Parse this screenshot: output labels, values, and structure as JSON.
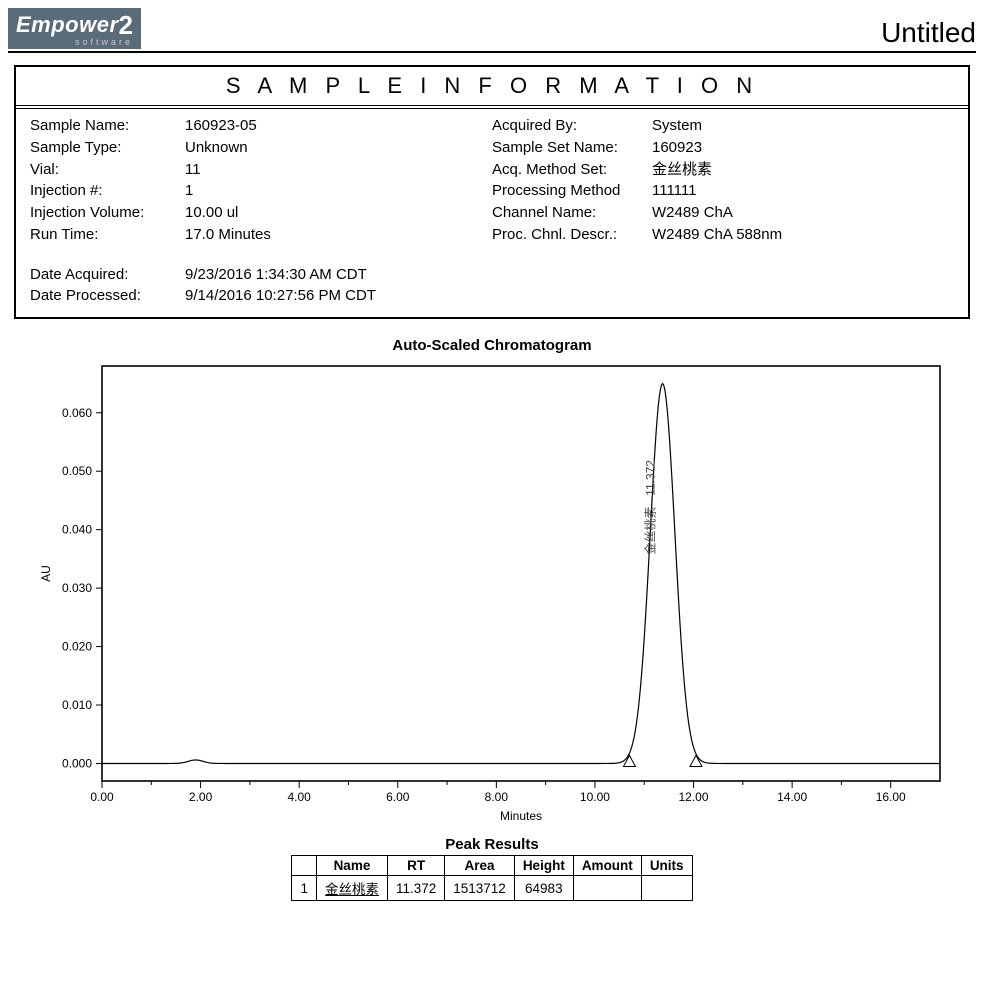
{
  "logo": {
    "brand": "Empower",
    "version": "2",
    "sub": "software"
  },
  "page_title": "Untitled",
  "sample_section_title": "S A M P L E     I N F O R M A T I O N",
  "sample_left": [
    {
      "label": "Sample Name:",
      "value": "160923-05"
    },
    {
      "label": "Sample Type:",
      "value": "Unknown"
    },
    {
      "label": "Vial:",
      "value": "11"
    },
    {
      "label": "Injection #:",
      "value": "1"
    },
    {
      "label": "Injection Volume:",
      "value": "10.00 ul"
    },
    {
      "label": "Run Time:",
      "value": "17.0 Minutes"
    }
  ],
  "sample_left_extra": [
    {
      "label": "Date Acquired:",
      "value": "9/23/2016 1:34:30 AM CDT"
    },
    {
      "label": "Date Processed:",
      "value": "9/14/2016 10:27:56 PM CDT"
    }
  ],
  "sample_right": [
    {
      "label": "Acquired By:",
      "value": "System"
    },
    {
      "label": "Sample Set Name:",
      "value": "160923"
    },
    {
      "label": "Acq. Method Set:",
      "value": "金丝桃素"
    },
    {
      "label": "Processing Method",
      "value": "111111"
    },
    {
      "label": "Channel Name:",
      "value": "W2489 ChA"
    },
    {
      "label": "Proc. Chnl. Descr.:",
      "value": "W2489 ChA 588nm"
    }
  ],
  "chart": {
    "title": "Auto-Scaled Chromatogram",
    "type": "line",
    "xlabel": "Minutes",
    "ylabel": "AU",
    "xlim": [
      0,
      17
    ],
    "ylim": [
      -0.003,
      0.068
    ],
    "xticks": [
      0,
      2,
      4,
      6,
      8,
      10,
      12,
      14,
      16
    ],
    "xtick_labels": [
      "0.00",
      "2.00",
      "4.00",
      "6.00",
      "8.00",
      "10.00",
      "12.00",
      "14.00",
      "16.00"
    ],
    "yticks": [
      0,
      0.01,
      0.02,
      0.03,
      0.04,
      0.05,
      0.06
    ],
    "ytick_labels": [
      "0.000",
      "0.010",
      "0.020",
      "0.030",
      "0.040",
      "0.050",
      "0.060"
    ],
    "plot_bg": "#ffffff",
    "axis_color": "#000000",
    "line_color": "#000000",
    "line_width": 1.2,
    "font_size_ticks": 12,
    "font_size_label": 12,
    "peak": {
      "rt": 11.372,
      "height": 0.065,
      "sigma": 0.25,
      "label": "金丝桃素 - 11.372",
      "marker_start_x": 10.7,
      "marker_end_x": 12.05
    },
    "baseline_blip_x": 1.9
  },
  "peak_results": {
    "title": "Peak Results",
    "columns": [
      "",
      "Name",
      "RT",
      "Area",
      "Height",
      "Amount",
      "Units"
    ],
    "rows": [
      [
        "1",
        "金丝桃素",
        "11.372",
        "1513712",
        "64983",
        "",
        ""
      ]
    ]
  }
}
